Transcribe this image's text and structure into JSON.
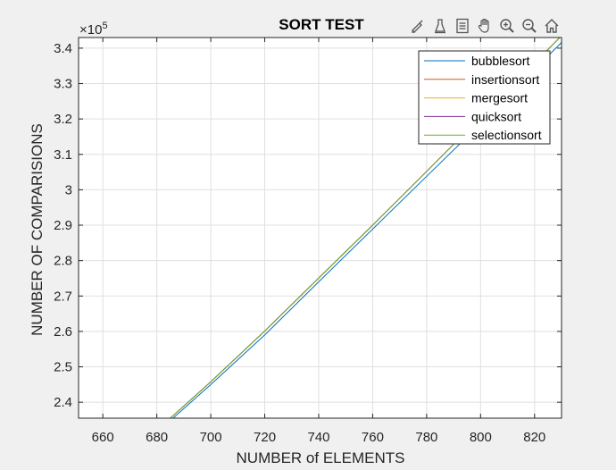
{
  "chart_data": {
    "type": "line",
    "title": "SORT TEST",
    "xlabel": "NUMBER of ELEMENTS",
    "ylabel": "NUMBER OF COMPARISIONS",
    "xlim": [
      651,
      830
    ],
    "ylim": [
      235500,
      343000
    ],
    "xticks": [
      660,
      680,
      700,
      720,
      740,
      760,
      780,
      800,
      820
    ],
    "yticks": [
      240000,
      250000,
      260000,
      270000,
      280000,
      290000,
      300000,
      310000,
      320000,
      330000,
      340000
    ],
    "ytick_labels": [
      "2.4",
      "2.5",
      "2.6",
      "2.7",
      "2.8",
      "2.9",
      "3",
      "3.1",
      "3.2",
      "3.3",
      "3.4"
    ],
    "y_exponent": "×10^5",
    "grid": true,
    "legend_position": "top-right",
    "series": [
      {
        "name": "bubblesort",
        "color": "#0072bd",
        "x": [
          686,
          700,
          720,
          740,
          760,
          780,
          800,
          820,
          830
        ],
        "y": [
          235500,
          245000,
          259000,
          274000,
          288900,
          303800,
          318700,
          334000,
          341600
        ]
      },
      {
        "name": "insertionsort",
        "color": "#d95319",
        "x": [
          685,
          700,
          720,
          740,
          760,
          780,
          800,
          820,
          830
        ],
        "y": [
          235500,
          245800,
          260100,
          275100,
          290000,
          305200,
          320500,
          335800,
          343500
        ]
      },
      {
        "name": "mergesort",
        "color": "#edb120",
        "x": [
          685,
          700,
          720,
          740,
          760,
          780,
          800,
          820,
          830
        ],
        "y": [
          235500,
          245800,
          260100,
          275100,
          290000,
          305200,
          320500,
          335800,
          343500
        ]
      },
      {
        "name": "quicksort",
        "color": "#7e2f8e",
        "x": [
          685,
          700,
          720,
          740,
          760,
          780,
          800,
          820,
          830
        ],
        "y": [
          235500,
          245800,
          260100,
          275100,
          290000,
          305200,
          320500,
          335800,
          343500
        ]
      },
      {
        "name": "selectionsort",
        "color": "#77ac30",
        "x": [
          685,
          700,
          720,
          740,
          760,
          780,
          800,
          820,
          830
        ],
        "y": [
          235500,
          245800,
          260100,
          275100,
          290000,
          305200,
          320500,
          335800,
          343500
        ]
      }
    ]
  },
  "toolbar": [
    {
      "name": "brush-icon"
    },
    {
      "name": "data-tips-icon"
    },
    {
      "name": "legend-toggle-icon"
    },
    {
      "name": "pan-hand-icon"
    },
    {
      "name": "zoom-in-icon"
    },
    {
      "name": "zoom-out-icon"
    },
    {
      "name": "home-icon"
    }
  ]
}
